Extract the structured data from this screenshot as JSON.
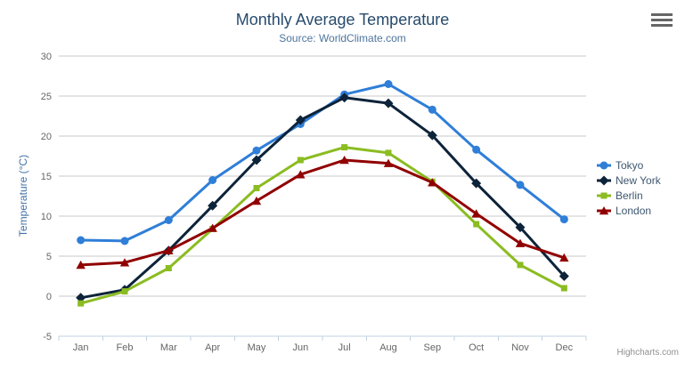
{
  "chart": {
    "title": "Monthly Average Temperature",
    "subtitle": "Source: WorldClimate.com",
    "y_axis_title": "Temperature (°C)",
    "credit": "Highcharts.com"
  },
  "chart_data": {
    "type": "line",
    "title": "Monthly Average Temperature",
    "subtitle": "Source: WorldClimate.com",
    "xlabel": "",
    "ylabel": "Temperature (°C)",
    "ylim": [
      -5,
      30
    ],
    "y_ticks": [
      30,
      25,
      20,
      15,
      10,
      5,
      0,
      -5
    ],
    "grid": true,
    "legend_position": "right",
    "categories": [
      "Jan",
      "Feb",
      "Mar",
      "Apr",
      "May",
      "Jun",
      "Jul",
      "Aug",
      "Sep",
      "Oct",
      "Nov",
      "Dec"
    ],
    "series": [
      {
        "name": "Tokyo",
        "color": "#2f7ed8",
        "marker": "circle",
        "values": [
          7.0,
          6.9,
          9.5,
          14.5,
          18.2,
          21.5,
          25.2,
          26.5,
          23.3,
          18.3,
          13.9,
          9.6
        ]
      },
      {
        "name": "New York",
        "color": "#0d233a",
        "marker": "diamond",
        "values": [
          -0.2,
          0.8,
          5.7,
          11.3,
          17.0,
          22.0,
          24.8,
          24.1,
          20.1,
          14.1,
          8.6,
          2.5
        ]
      },
      {
        "name": "Berlin",
        "color": "#8bbc21",
        "marker": "square",
        "values": [
          -0.9,
          0.6,
          3.5,
          8.4,
          13.5,
          17.0,
          18.6,
          17.9,
          14.3,
          9.0,
          3.9,
          1.0
        ]
      },
      {
        "name": "London",
        "color": "#910000",
        "marker": "triangle",
        "values": [
          3.9,
          4.2,
          5.7,
          8.5,
          11.9,
          15.2,
          17.0,
          16.6,
          14.2,
          10.3,
          6.6,
          4.8
        ]
      }
    ]
  },
  "colors": {
    "title": "#274b6d",
    "subtitle": "#4d759e",
    "axis_title": "#4572a7",
    "tick_label": "#666666",
    "grid_line": "#c8c8c8",
    "axis_line": "#c0d0e0",
    "legend_text": "#3e576f",
    "credit": "#909090",
    "menu_icon": "#666666"
  }
}
